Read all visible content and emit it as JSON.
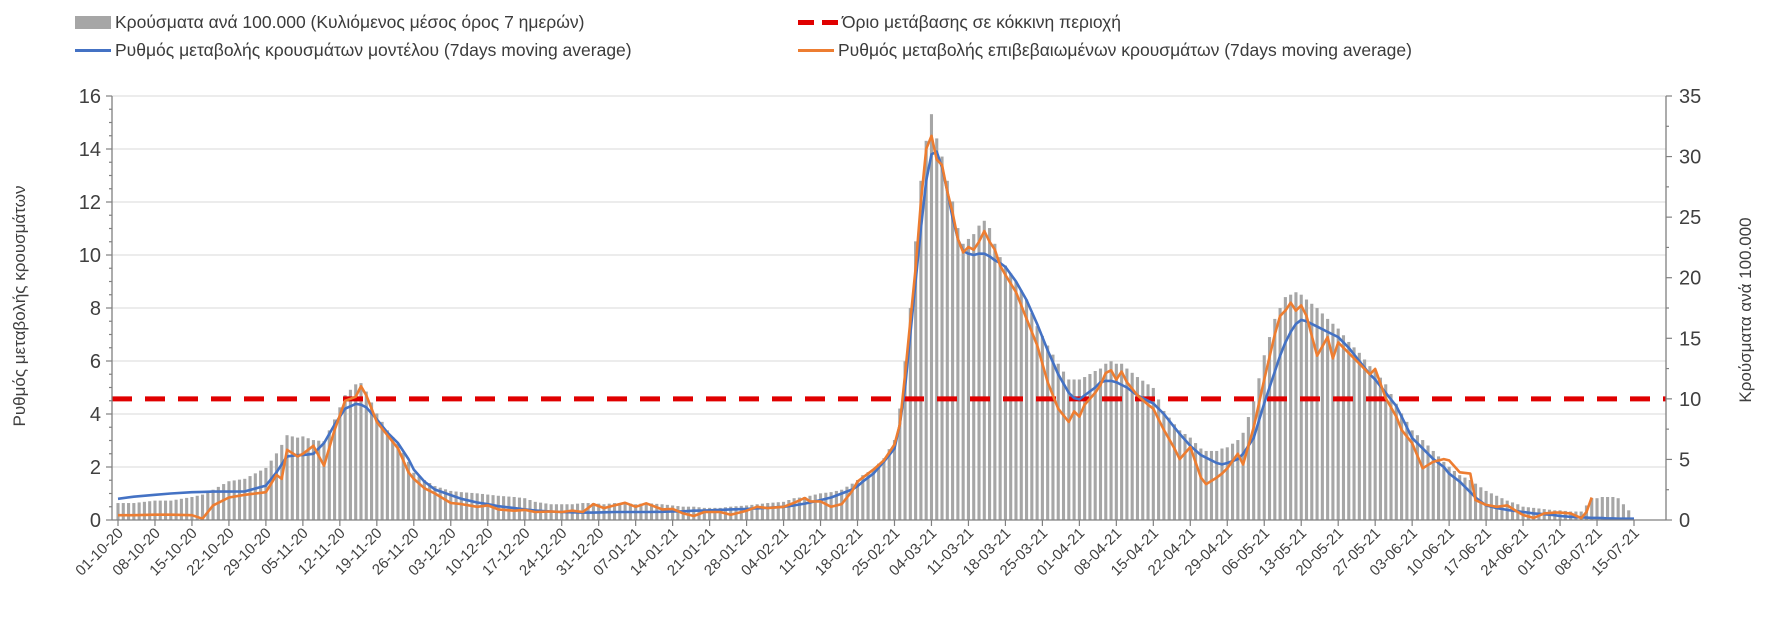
{
  "chart_data": {
    "type": "combo: daily bars + two moving-average lines + horizontal threshold line",
    "left_axis": {
      "label": "Ρυθμός μεταβολής κρουσμάτων",
      "min": 0,
      "max": 16,
      "step": 2
    },
    "right_axis": {
      "label": "Κρούσματα ανά 100.000",
      "min": 0,
      "max": 35,
      "step": 5
    },
    "x_tick_labels": [
      "01-10-20",
      "08-10-20",
      "15-10-20",
      "22-10-20",
      "29-10-20",
      "05-11-20",
      "12-11-20",
      "19-11-20",
      "26-11-20",
      "03-12-20",
      "10-12-20",
      "17-12-20",
      "24-12-20",
      "31-12-20",
      "07-01-21",
      "14-01-21",
      "21-01-21",
      "28-01-21",
      "04-02-21",
      "11-02-21",
      "18-02-21",
      "25-02-21",
      "04-03-21",
      "11-03-21",
      "18-03-21",
      "25-03-21",
      "01-04-21",
      "08-04-21",
      "15-04-21",
      "22-04-21",
      "29-04-21",
      "06-05-21",
      "13-05-21",
      "20-05-21",
      "27-05-21",
      "03-06-21",
      "10-06-21",
      "17-06-21",
      "24-06-21",
      "01-07-21",
      "08-07-21",
      "15-07-21"
    ],
    "threshold": {
      "label": "Όριο μετάβασης σε κόκκινη περιοχή",
      "axis": "right",
      "value": 10,
      "color": "#e00000",
      "style": "dashed"
    },
    "series": [
      {
        "name": "Κρούσματα ανά 100.000 (Κυλιόμενος μέσος όρος 7 ημερών)",
        "type": "bar",
        "axis": "right",
        "color": "#a6a6a6"
      },
      {
        "name": "Ρυθμός μεταβολής κρουσμάτων μοντέλου (7days moving average)",
        "type": "line",
        "axis": "left",
        "color": "#4472c4"
      },
      {
        "name": "Ρυθμός μεταβολής επιβεβαιωμένων κρουσμάτων (7days moving average)",
        "type": "line",
        "axis": "left",
        "color": "#ed7d31"
      }
    ],
    "point_columns": [
      "date",
      "cases_per_100k",
      "model_rate",
      "confirmed_rate"
    ],
    "points": [
      [
        "01-10-20",
        1.4,
        0.8,
        0.18
      ],
      [
        "04-10-20",
        1.4,
        0.88,
        0.18
      ],
      [
        "08-10-20",
        1.6,
        0.95,
        0.2
      ],
      [
        "11-10-20",
        1.6,
        1.0,
        0.2
      ],
      [
        "15-10-20",
        1.9,
        1.05,
        0.18
      ],
      [
        "17-10-20",
        2.1,
        1.06,
        0.05
      ],
      [
        "19-10-20",
        2.5,
        1.07,
        0.55
      ],
      [
        "22-10-20",
        3.2,
        1.07,
        0.85
      ],
      [
        "25-10-20",
        3.4,
        1.08,
        0.95
      ],
      [
        "29-10-20",
        4.3,
        1.3,
        1.05
      ],
      [
        "31-10-20",
        5.5,
        1.8,
        1.7
      ],
      [
        "01-11-20",
        6.2,
        2.1,
        1.55
      ],
      [
        "02-11-20",
        7.0,
        2.4,
        2.65
      ],
      [
        "04-11-20",
        6.8,
        2.45,
        2.4
      ],
      [
        "05-11-20",
        6.9,
        2.45,
        2.5
      ],
      [
        "07-11-20",
        6.6,
        2.5,
        2.8
      ],
      [
        "09-11-20",
        6.5,
        2.9,
        2.05
      ],
      [
        "11-11-20",
        8.3,
        3.6,
        3.4
      ],
      [
        "13-11-20",
        10.3,
        4.2,
        4.5
      ],
      [
        "15-11-20",
        11.2,
        4.38,
        4.65
      ],
      [
        "16-11-20",
        11.3,
        4.35,
        5.05
      ],
      [
        "17-11-20",
        10.6,
        4.25,
        4.7
      ],
      [
        "19-11-20",
        8.8,
        3.8,
        3.7
      ],
      [
        "21-11-20",
        7.4,
        3.3,
        3.2
      ],
      [
        "23-11-20",
        6.3,
        2.9,
        2.7
      ],
      [
        "25-11-20",
        4.8,
        2.3,
        1.8
      ],
      [
        "26-11-20",
        3.9,
        1.9,
        1.55
      ],
      [
        "28-11-20",
        3.3,
        1.45,
        1.2
      ],
      [
        "30-11-20",
        2.8,
        1.15,
        1.0
      ],
      [
        "03-12-20",
        2.4,
        0.94,
        0.64
      ],
      [
        "05-12-20",
        2.3,
        0.8,
        0.6
      ],
      [
        "08-12-20",
        2.2,
        0.66,
        0.5
      ],
      [
        "10-12-20",
        2.1,
        0.6,
        0.55
      ],
      [
        "12-12-20",
        2.0,
        0.52,
        0.4
      ],
      [
        "15-12-20",
        1.9,
        0.45,
        0.35
      ],
      [
        "17-12-20",
        1.8,
        0.4,
        0.38
      ],
      [
        "19-12-20",
        1.5,
        0.36,
        0.3
      ],
      [
        "22-12-20",
        1.3,
        0.32,
        0.32
      ],
      [
        "24-12-20",
        1.3,
        0.3,
        0.3
      ],
      [
        "26-12-20",
        1.3,
        0.29,
        0.35
      ],
      [
        "28-12-20",
        1.4,
        0.28,
        0.3
      ],
      [
        "30-12-20",
        1.4,
        0.28,
        0.6
      ],
      [
        "01-01-21",
        1.3,
        0.29,
        0.45
      ],
      [
        "03-01-21",
        1.4,
        0.3,
        0.55
      ],
      [
        "05-01-21",
        1.4,
        0.3,
        0.65
      ],
      [
        "07-01-21",
        1.3,
        0.3,
        0.5
      ],
      [
        "09-01-21",
        1.4,
        0.3,
        0.63
      ],
      [
        "12-01-21",
        1.3,
        0.31,
        0.4
      ],
      [
        "14-01-21",
        1.2,
        0.32,
        0.42
      ],
      [
        "16-01-21",
        1.1,
        0.33,
        0.25
      ],
      [
        "18-01-21",
        1.1,
        0.35,
        0.15
      ],
      [
        "20-01-21",
        1.0,
        0.36,
        0.3
      ],
      [
        "23-01-21",
        1.0,
        0.38,
        0.3
      ],
      [
        "25-01-21",
        1.1,
        0.4,
        0.2
      ],
      [
        "28-01-21",
        1.2,
        0.42,
        0.35
      ],
      [
        "30-01-21",
        1.3,
        0.44,
        0.5
      ],
      [
        "01-02-21",
        1.4,
        0.46,
        0.45
      ],
      [
        "04-02-21",
        1.5,
        0.5,
        0.5
      ],
      [
        "06-02-21",
        1.8,
        0.55,
        0.65
      ],
      [
        "08-02-21",
        1.9,
        0.62,
        0.83
      ],
      [
        "09-02-21",
        2.0,
        0.66,
        0.7
      ],
      [
        "11-02-21",
        2.2,
        0.75,
        0.7
      ],
      [
        "13-02-21",
        2.3,
        0.85,
        0.5
      ],
      [
        "15-02-21",
        2.5,
        1.0,
        0.6
      ],
      [
        "17-02-21",
        3.0,
        1.15,
        1.1
      ],
      [
        "18-02-21",
        3.3,
        1.28,
        1.45
      ],
      [
        "19-02-21",
        3.7,
        1.45,
        1.6
      ],
      [
        "21-02-21",
        4.2,
        1.75,
        1.9
      ],
      [
        "23-02-21",
        5.1,
        2.2,
        2.25
      ],
      [
        "25-02-21",
        6.6,
        2.7,
        2.85
      ],
      [
        "26-02-21",
        9.2,
        3.6,
        3.6
      ],
      [
        "27-02-21",
        13.1,
        5.0,
        5.5
      ],
      [
        "28-02-21",
        17.5,
        7.0,
        7.5
      ],
      [
        "01-03-21",
        23.0,
        9.0,
        9.5
      ],
      [
        "02-03-21",
        28.0,
        11.0,
        12.0
      ],
      [
        "03-03-21",
        31.3,
        12.8,
        14.0
      ],
      [
        "04-03-21",
        33.5,
        13.8,
        14.5
      ],
      [
        "05-03-21",
        31.5,
        13.9,
        13.6
      ],
      [
        "06-03-21",
        30.0,
        13.3,
        13.4
      ],
      [
        "07-03-21",
        28.0,
        12.4,
        12.4
      ],
      [
        "08-03-21",
        26.3,
        11.4,
        11.6
      ],
      [
        "09-03-21",
        24.1,
        10.6,
        10.6
      ],
      [
        "10-03-21",
        22.8,
        10.15,
        10.1
      ],
      [
        "11-03-21",
        23.2,
        10.05,
        10.3
      ],
      [
        "12-03-21",
        23.6,
        10.0,
        10.2
      ],
      [
        "13-03-21",
        24.3,
        10.05,
        10.5
      ],
      [
        "14-03-21",
        24.7,
        10.05,
        10.9
      ],
      [
        "15-03-21",
        24.1,
        9.95,
        10.5
      ],
      [
        "16-03-21",
        22.8,
        9.8,
        10.2
      ],
      [
        "17-03-21",
        21.7,
        9.7,
        9.6
      ],
      [
        "18-03-21",
        21.0,
        9.55,
        9.25
      ],
      [
        "20-03-21",
        19.7,
        9.0,
        8.6
      ],
      [
        "22-03-21",
        18.2,
        8.3,
        7.6
      ],
      [
        "24-03-21",
        16.0,
        7.4,
        6.6
      ],
      [
        "26-03-21",
        14.4,
        6.4,
        5.2
      ],
      [
        "28-03-21",
        12.9,
        5.5,
        4.2
      ],
      [
        "30-03-21",
        11.6,
        4.8,
        3.7
      ],
      [
        "31-03-21",
        11.6,
        4.6,
        4.1
      ],
      [
        "01-04-21",
        11.6,
        4.55,
        3.9
      ],
      [
        "02-04-21",
        11.8,
        4.7,
        4.35
      ],
      [
        "04-04-21",
        12.3,
        5.0,
        4.8
      ],
      [
        "05-04-21",
        12.5,
        5.2,
        5.1
      ],
      [
        "06-04-21",
        12.9,
        5.25,
        5.55
      ],
      [
        "07-04-21",
        13.1,
        5.25,
        5.65
      ],
      [
        "08-04-21",
        12.9,
        5.2,
        5.3
      ],
      [
        "09-04-21",
        12.9,
        5.1,
        5.6
      ],
      [
        "10-04-21",
        12.5,
        5.0,
        5.2
      ],
      [
        "12-04-21",
        11.8,
        4.7,
        4.7
      ],
      [
        "14-04-21",
        11.2,
        4.5,
        4.35
      ],
      [
        "15-04-21",
        10.9,
        4.4,
        4.2
      ],
      [
        "17-04-21",
        9.0,
        4.0,
        3.4
      ],
      [
        "19-04-21",
        7.9,
        3.5,
        2.7
      ],
      [
        "20-04-21",
        7.4,
        3.25,
        2.3
      ],
      [
        "22-04-21",
        6.8,
        2.8,
        2.75
      ],
      [
        "24-04-21",
        5.9,
        2.45,
        1.6
      ],
      [
        "25-04-21",
        5.7,
        2.35,
        1.35
      ],
      [
        "27-04-21",
        5.7,
        2.15,
        1.6
      ],
      [
        "28-04-21",
        5.9,
        2.1,
        1.75
      ],
      [
        "29-04-21",
        6.0,
        2.15,
        1.95
      ],
      [
        "01-05-21",
        6.6,
        2.3,
        2.5
      ],
      [
        "02-05-21",
        7.2,
        2.5,
        2.1
      ],
      [
        "04-05-21",
        9.8,
        3.1,
        3.5
      ],
      [
        "06-05-21",
        13.6,
        4.4,
        5.3
      ],
      [
        "08-05-21",
        16.6,
        5.6,
        7.0
      ],
      [
        "09-05-21",
        17.5,
        6.2,
        7.7
      ],
      [
        "10-05-21",
        18.4,
        6.7,
        7.9
      ],
      [
        "11-05-21",
        18.6,
        7.1,
        8.2
      ],
      [
        "12-05-21",
        18.8,
        7.4,
        7.9
      ],
      [
        "13-05-21",
        18.6,
        7.55,
        8.1
      ],
      [
        "14-05-21",
        18.2,
        7.5,
        7.7
      ],
      [
        "16-05-21",
        17.5,
        7.3,
        6.2
      ],
      [
        "18-05-21",
        16.6,
        7.1,
        6.9
      ],
      [
        "19-05-21",
        16.2,
        7.0,
        6.1
      ],
      [
        "20-05-21",
        15.8,
        6.9,
        6.7
      ],
      [
        "22-05-21",
        14.7,
        6.5,
        6.3
      ],
      [
        "24-05-21",
        13.8,
        6.0,
        5.9
      ],
      [
        "26-05-21",
        12.7,
        5.5,
        5.5
      ],
      [
        "27-05-21",
        12.3,
        5.3,
        5.7
      ],
      [
        "29-05-21",
        11.2,
        4.8,
        4.6
      ],
      [
        "31-05-21",
        9.6,
        4.3,
        3.9
      ],
      [
        "01-06-21",
        8.8,
        3.9,
        3.4
      ],
      [
        "03-06-21",
        7.4,
        3.1,
        2.9
      ],
      [
        "05-06-21",
        6.6,
        2.7,
        1.95
      ],
      [
        "07-06-21",
        5.7,
        2.3,
        2.2
      ],
      [
        "09-06-21",
        4.8,
        2.0,
        2.3
      ],
      [
        "10-06-21",
        4.4,
        1.75,
        2.25
      ],
      [
        "12-06-21",
        3.7,
        1.45,
        1.8
      ],
      [
        "14-06-21",
        3.3,
        1.05,
        1.75
      ],
      [
        "15-06-21",
        3.0,
        0.85,
        0.75
      ],
      [
        "17-06-21",
        2.4,
        0.55,
        0.57
      ],
      [
        "19-06-21",
        2.0,
        0.45,
        0.5
      ],
      [
        "21-06-21",
        1.6,
        0.38,
        0.55
      ],
      [
        "23-06-21",
        1.3,
        0.33,
        0.3
      ],
      [
        "24-06-21",
        1.1,
        0.3,
        0.19
      ],
      [
        "26-06-21",
        1.0,
        0.25,
        0.08
      ],
      [
        "28-06-21",
        0.9,
        0.22,
        0.25
      ],
      [
        "30-06-21",
        0.8,
        0.18,
        0.28
      ],
      [
        "01-07-21",
        0.8,
        0.15,
        0.28
      ],
      [
        "03-07-21",
        0.7,
        0.12,
        0.25
      ],
      [
        "05-07-21",
        0.7,
        0.1,
        0.07
      ],
      [
        "06-07-21",
        1.2,
        0.09,
        0.3
      ],
      [
        "07-07-21",
        1.8,
        0.08,
        0.85
      ],
      [
        "08-07-21",
        1.8,
        0.08,
        null
      ],
      [
        "09-07-21",
        1.9,
        0.07,
        null
      ],
      [
        "10-07-21",
        1.9,
        0.06,
        null
      ],
      [
        "11-07-21",
        1.9,
        0.06,
        null
      ],
      [
        "12-07-21",
        1.8,
        0.05,
        null
      ],
      [
        "13-07-21",
        1.3,
        0.05,
        null
      ],
      [
        "14-07-21",
        0.8,
        0.05,
        null
      ],
      [
        "15-07-21",
        null,
        0.05,
        null
      ]
    ],
    "layout": {
      "grid": "horizontal-only",
      "legend_position": "top, two columns",
      "x_label_rotation_deg": -45
    }
  },
  "colors": {
    "bars": "#a6a6a6",
    "model_line": "#4472c4",
    "confirmed_line": "#ed7d31",
    "threshold": "#e00000",
    "gridline": "#d9d9d9",
    "spine": "#808080",
    "text": "#404040"
  }
}
